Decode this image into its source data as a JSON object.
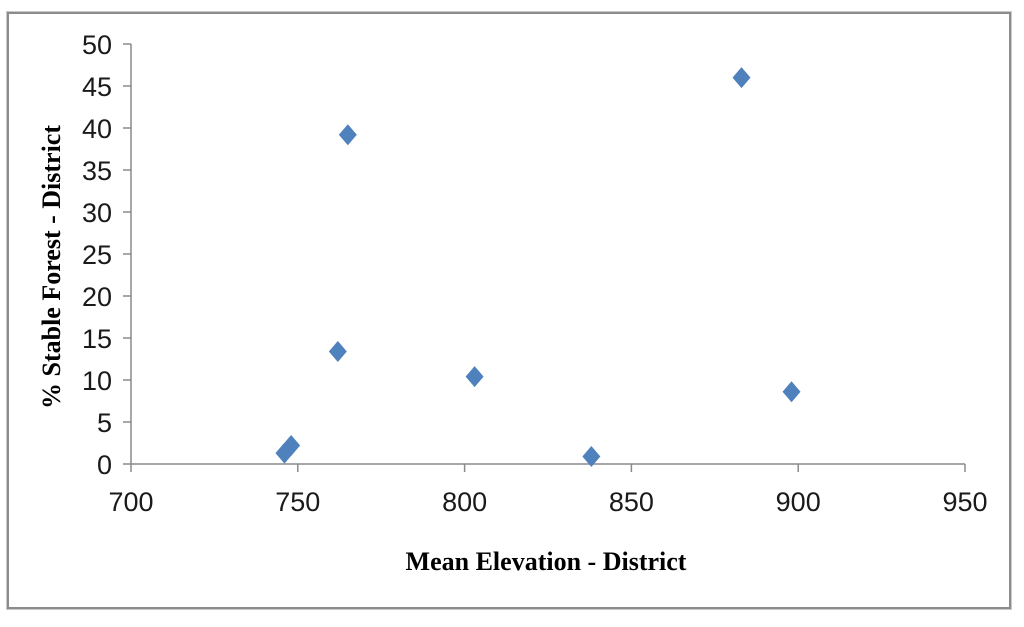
{
  "chart_data": {
    "type": "scatter",
    "title": "",
    "xlabel": "Mean Elevation - District",
    "ylabel": "% Stable Forest - District",
    "xlim": [
      700,
      950
    ],
    "ylim": [
      0,
      50
    ],
    "x_ticks": [
      700,
      750,
      800,
      850,
      900,
      950
    ],
    "y_ticks": [
      0,
      5,
      10,
      15,
      20,
      25,
      30,
      35,
      40,
      45,
      50
    ],
    "grid": false,
    "legend": "none",
    "marker": {
      "shape": "diamond",
      "color": "#4F81BD"
    },
    "points": [
      {
        "x": 746,
        "y": 1.3
      },
      {
        "x": 748,
        "y": 2.2
      },
      {
        "x": 762,
        "y": 13.4
      },
      {
        "x": 765,
        "y": 39.2
      },
      {
        "x": 803,
        "y": 10.4
      },
      {
        "x": 838,
        "y": 0.9
      },
      {
        "x": 883,
        "y": 46.0
      },
      {
        "x": 898,
        "y": 8.6
      }
    ],
    "colors": {
      "axis_line": "#8a8a8a",
      "tick_label": "#1a1a1a",
      "axis_title": "#000000",
      "frame_border": "#8c8c8c",
      "background": "#ffffff"
    }
  }
}
